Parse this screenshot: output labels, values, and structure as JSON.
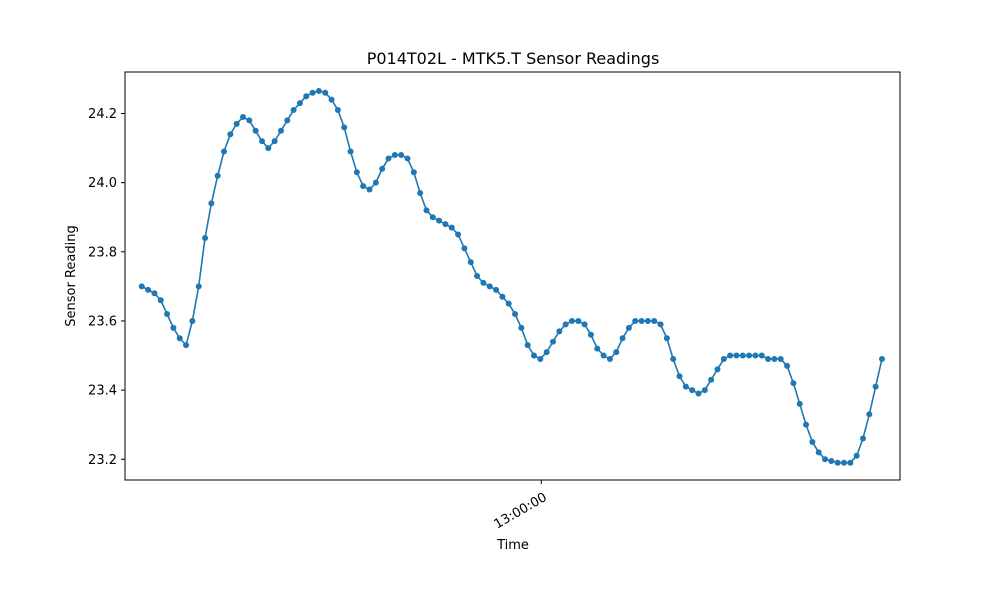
{
  "chart_data": {
    "type": "line",
    "title": "P014T02L - MTK5.T Sensor Readings",
    "xlabel": "Time",
    "ylabel": "Sensor Reading",
    "ylim": [
      23.14,
      24.32
    ],
    "y_ticks": [
      23.2,
      23.4,
      23.6,
      23.8,
      24.0,
      24.2
    ],
    "y_tick_labels": [
      "23.2",
      "23.4",
      "23.6",
      "23.8",
      "24.0",
      "24.2"
    ],
    "x_tick_labels": [
      "13:00:00"
    ],
    "x_tick_values": [
      12.63
    ],
    "xlim": [
      -0.53,
      23.97
    ],
    "color": "#1f77b4",
    "grid": false,
    "x": [
      0,
      0.2,
      0.4,
      0.6,
      0.8,
      1.0,
      1.2,
      1.4,
      1.6,
      1.8,
      2.0,
      2.2,
      2.4,
      2.6,
      2.8,
      3.0,
      3.2,
      3.4,
      3.6,
      3.8,
      4.0,
      4.2,
      4.4,
      4.6,
      4.8,
      5.0,
      5.2,
      5.4,
      5.6,
      5.8,
      6.0,
      6.2,
      6.4,
      6.6,
      6.8,
      7.0,
      7.2,
      7.4,
      7.6,
      7.8,
      8.0,
      8.2,
      8.4,
      8.6,
      8.8,
      9.0,
      9.2,
      9.4,
      9.6,
      9.8,
      10.0,
      10.2,
      10.4,
      10.6,
      10.8,
      11.0,
      11.2,
      11.4,
      11.6,
      11.8,
      12.0,
      12.2,
      12.4,
      12.6,
      12.8,
      13.0,
      13.2,
      13.4,
      13.6,
      13.8,
      14.0,
      14.2,
      14.4,
      14.6,
      14.8,
      15.0,
      15.2,
      15.4,
      15.6,
      15.8,
      16.0,
      16.2,
      16.4,
      16.6,
      16.8,
      17.0,
      17.2,
      17.4,
      17.6,
      17.8,
      18.0,
      18.2,
      18.4,
      18.6,
      18.8,
      19.0,
      19.2,
      19.4,
      19.6,
      19.8,
      20.0,
      20.2,
      20.4,
      20.6,
      20.8,
      21.0,
      21.2,
      21.4,
      21.6,
      21.8,
      22.0,
      22.2,
      22.4,
      22.6,
      22.8,
      23.0,
      23.2,
      23.4
    ],
    "values": [
      23.7,
      23.69,
      23.68,
      23.66,
      23.62,
      23.58,
      23.55,
      23.53,
      23.6,
      23.7,
      23.84,
      23.94,
      24.02,
      24.09,
      24.14,
      24.17,
      24.19,
      24.18,
      24.15,
      24.12,
      24.1,
      24.12,
      24.15,
      24.18,
      24.21,
      24.23,
      24.25,
      24.26,
      24.265,
      24.26,
      24.24,
      24.21,
      24.16,
      24.09,
      24.03,
      23.99,
      23.98,
      24.0,
      24.04,
      24.07,
      24.08,
      24.08,
      24.07,
      24.03,
      23.97,
      23.92,
      23.9,
      23.89,
      23.88,
      23.87,
      23.85,
      23.81,
      23.77,
      23.73,
      23.71,
      23.7,
      23.69,
      23.67,
      23.65,
      23.62,
      23.58,
      23.53,
      23.5,
      23.49,
      23.51,
      23.54,
      23.57,
      23.59,
      23.6,
      23.6,
      23.59,
      23.56,
      23.52,
      23.5,
      23.49,
      23.51,
      23.55,
      23.58,
      23.6,
      23.6,
      23.6,
      23.6,
      23.59,
      23.55,
      23.49,
      23.44,
      23.41,
      23.4,
      23.39,
      23.4,
      23.43,
      23.46,
      23.49,
      23.5,
      23.5,
      23.5,
      23.5,
      23.5,
      23.5,
      23.49,
      23.49,
      23.49,
      23.47,
      23.42,
      23.36,
      23.3,
      23.25,
      23.22,
      23.2,
      23.195,
      23.19,
      23.19,
      23.19,
      23.21,
      23.26,
      23.33,
      23.41,
      23.49
    ]
  }
}
